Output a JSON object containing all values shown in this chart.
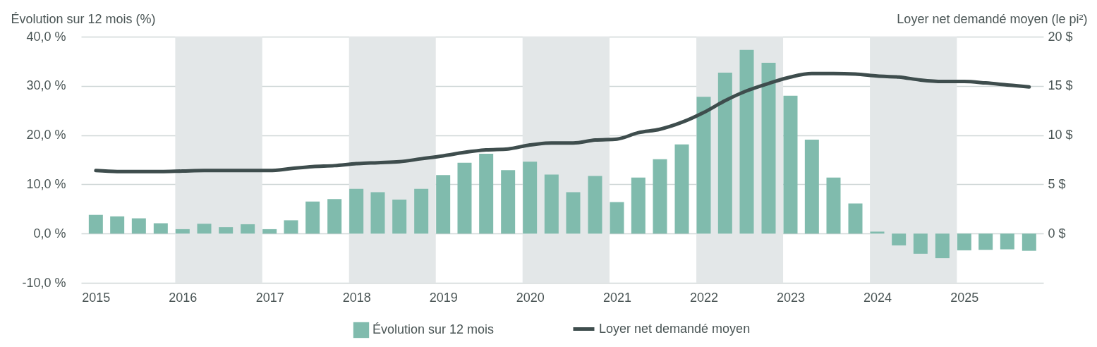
{
  "chart_data": {
    "type": "bar",
    "ylabel": "Évolution sur 12 mois (%)",
    "y2label": "Loyer net demandé moyen (le pi²)",
    "x": [
      "2015-01",
      "2015-04",
      "2015-07",
      "2015-10",
      "2016-01",
      "2016-04",
      "2016-07",
      "2016-10",
      "2017-01",
      "2017-04",
      "2017-07",
      "2017-10",
      "2018-01",
      "2018-04",
      "2018-07",
      "2018-10",
      "2019-01",
      "2019-04",
      "2019-07",
      "2019-10",
      "2020-01",
      "2020-04",
      "2020-07",
      "2020-10",
      "2021-01",
      "2021-04",
      "2021-07",
      "2021-10",
      "2022-01",
      "2022-04",
      "2022-07",
      "2022-10",
      "2023-01",
      "2023-04",
      "2023-07",
      "2023-10",
      "2024-01",
      "2024-04",
      "2024-07",
      "2024-10",
      "2025-01",
      "2025-04",
      "2025-07",
      "2025-10"
    ],
    "series": [
      {
        "name": "Évolution sur 12 mois",
        "color": "#80bbad",
        "values": [
          3.8,
          3.5,
          3.1,
          2.1,
          0.9,
          2.0,
          1.3,
          1.9,
          0.9,
          2.7,
          6.5,
          7.0,
          9.1,
          8.4,
          6.9,
          9.1,
          11.9,
          14.4,
          16.2,
          12.9,
          14.6,
          12.0,
          8.4,
          11.7,
          6.4,
          11.4,
          15.1,
          18.1,
          27.8,
          32.7,
          37.3,
          34.7,
          28.0,
          19.1,
          11.4,
          6.1,
          0.4,
          -2.4,
          -4.1,
          -5.0,
          -3.4,
          -3.3,
          -3.2,
          -3.5
        ]
      },
      {
        "name": "Loyer net demandé moyen",
        "type": "line",
        "axis": "y2",
        "color": "#3e4d4d",
        "values": [
          6.4,
          6.3,
          6.3,
          6.3,
          6.35,
          6.4,
          6.4,
          6.4,
          6.4,
          6.6,
          6.8,
          6.9,
          7.1,
          7.2,
          7.3,
          7.6,
          7.9,
          8.25,
          8.5,
          8.6,
          9.0,
          9.2,
          9.2,
          9.5,
          9.6,
          10.25,
          10.6,
          11.3,
          12.3,
          13.5,
          14.5,
          15.25,
          15.9,
          16.25,
          16.25,
          16.2,
          16.0,
          15.9,
          15.6,
          15.45,
          15.45,
          15.3,
          15.1,
          14.9
        ]
      }
    ],
    "xlim": [
      "2014-11-15",
      "2025-11-15"
    ],
    "xticks": [
      "2015",
      "2016",
      "2017",
      "2018",
      "2019",
      "2020",
      "2021",
      "2022",
      "2023",
      "2024",
      "2025"
    ],
    "ylim": [
      -10,
      40
    ],
    "yticks": [
      {
        "value": -10,
        "label": "-10,0 %"
      },
      {
        "value": 0,
        "label": "0,0 %"
      },
      {
        "value": 10,
        "label": "10,0 %"
      },
      {
        "value": 20,
        "label": "20,0 %"
      },
      {
        "value": 30,
        "label": "30,0 %"
      },
      {
        "value": 40,
        "label": "40,0 %"
      }
    ],
    "y2lim": [
      -5,
      20
    ],
    "y2ticks": [
      {
        "value": 0,
        "label": "0 $"
      },
      {
        "value": 5,
        "label": "5 $"
      },
      {
        "value": 10,
        "label": "10 $"
      },
      {
        "value": 15,
        "label": "15 $"
      },
      {
        "value": 20,
        "label": "20 $"
      }
    ],
    "bands": [
      {
        "axis": "x",
        "from": "2015-12-01",
        "to": "2016-12-01",
        "color": "#e3e7e8"
      },
      {
        "axis": "x",
        "from": "2017-12-01",
        "to": "2018-12-01",
        "color": "#e3e7e8"
      },
      {
        "axis": "x",
        "from": "2019-12-01",
        "to": "2020-12-01",
        "color": "#e3e7e8"
      },
      {
        "axis": "x",
        "from": "2021-12-01",
        "to": "2022-12-01",
        "color": "#e3e7e8"
      },
      {
        "axis": "x",
        "from": "2023-12-01",
        "to": "2024-12-01",
        "color": "#e3e7e8"
      }
    ],
    "grid": "y",
    "legend": "bottom"
  }
}
